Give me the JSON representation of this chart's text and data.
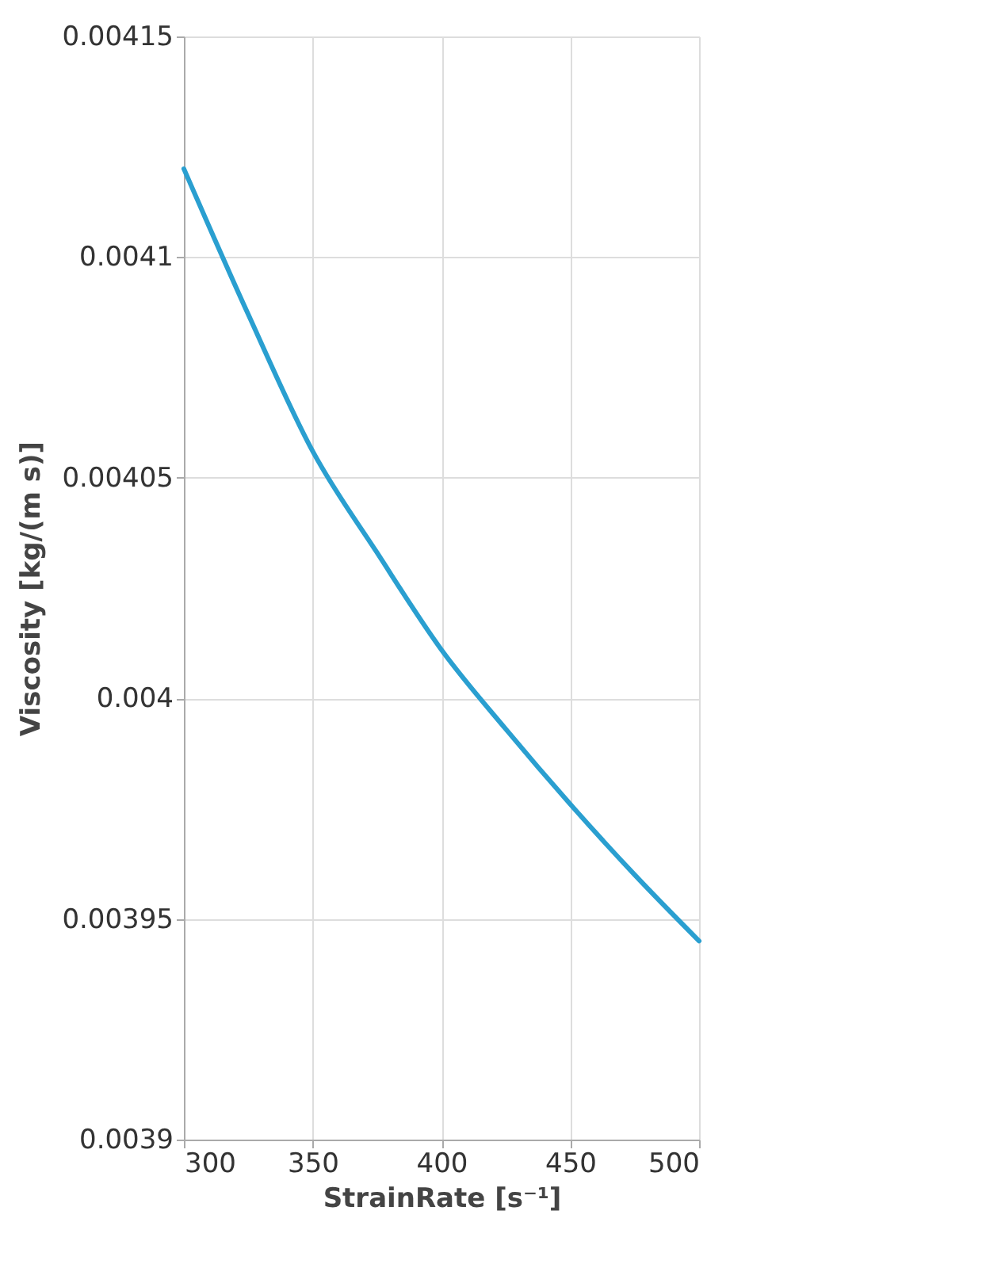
{
  "chart_data": {
    "type": "line",
    "xlabel": "StrainRate [s⁻¹]",
    "ylabel": "Viscosity [kg/(m s)]",
    "x": [
      300,
      325,
      350,
      375,
      400,
      425,
      450,
      475,
      500
    ],
    "series": [
      {
        "color": "#2a9fd0",
        "values": [
          0.00412,
          0.004087,
          0.004056,
          0.004033,
          0.004011,
          0.003993,
          0.003976,
          0.00396,
          0.003945
        ]
      }
    ],
    "xlim": [
      300,
      500
    ],
    "xticks": [
      300,
      350,
      400,
      450,
      500
    ],
    "ylim": [
      0.0039,
      0.00415
    ],
    "yticks": [
      0.0039,
      0.00395,
      0.004,
      0.00405,
      0.0041,
      0.00415
    ],
    "grid": true,
    "marker": "none",
    "line_style": "solid"
  }
}
